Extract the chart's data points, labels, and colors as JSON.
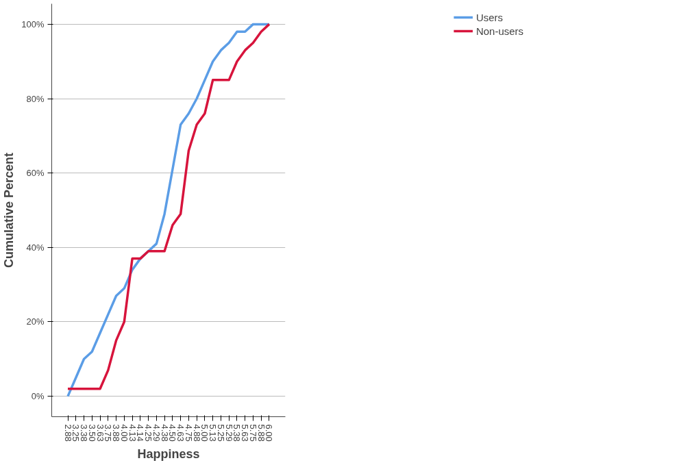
{
  "chart_data": {
    "type": "line",
    "xlabel": "Happiness",
    "ylabel": "Cumulative Percent",
    "categories": [
      "2.88",
      "3.25",
      "3.38",
      "3.50",
      "3.63",
      "3.75",
      "3.88",
      "4.00",
      "4.13",
      "4.14",
      "4.25",
      "4.29",
      "4.38",
      "4.50",
      "4.63",
      "4.75",
      "4.88",
      "5.00",
      "5.13",
      "5.25",
      "5.29",
      "5.38",
      "5.63",
      "5.75",
      "5.88",
      "6.00"
    ],
    "series": [
      {
        "name": "Users",
        "color": "#5b9de6",
        "values": [
          0,
          5,
          10,
          12,
          17,
          22,
          27,
          29,
          34,
          37,
          39,
          41,
          49,
          61,
          73,
          76,
          80,
          85,
          90,
          93,
          95,
          98,
          98,
          100,
          100,
          100
        ]
      },
      {
        "name": "Non-users",
        "color": "#d7143c",
        "values": [
          2,
          2,
          2,
          2,
          2,
          7,
          15,
          20,
          37,
          37,
          39,
          39,
          39,
          46,
          49,
          66,
          73,
          76,
          85,
          85,
          85,
          90,
          93,
          95,
          98,
          100
        ]
      }
    ],
    "ylim": [
      -5.5,
      105.5
    ],
    "yticks": [
      {
        "value": 0,
        "label": "0%"
      },
      {
        "value": 20,
        "label": "20%"
      },
      {
        "value": 40,
        "label": "40%"
      },
      {
        "value": 60,
        "label": "60%"
      },
      {
        "value": 80,
        "label": "80%"
      },
      {
        "value": 100,
        "label": "100%"
      }
    ],
    "grid": "y",
    "legend": "top right",
    "marker": "none",
    "line_style": "solid"
  }
}
